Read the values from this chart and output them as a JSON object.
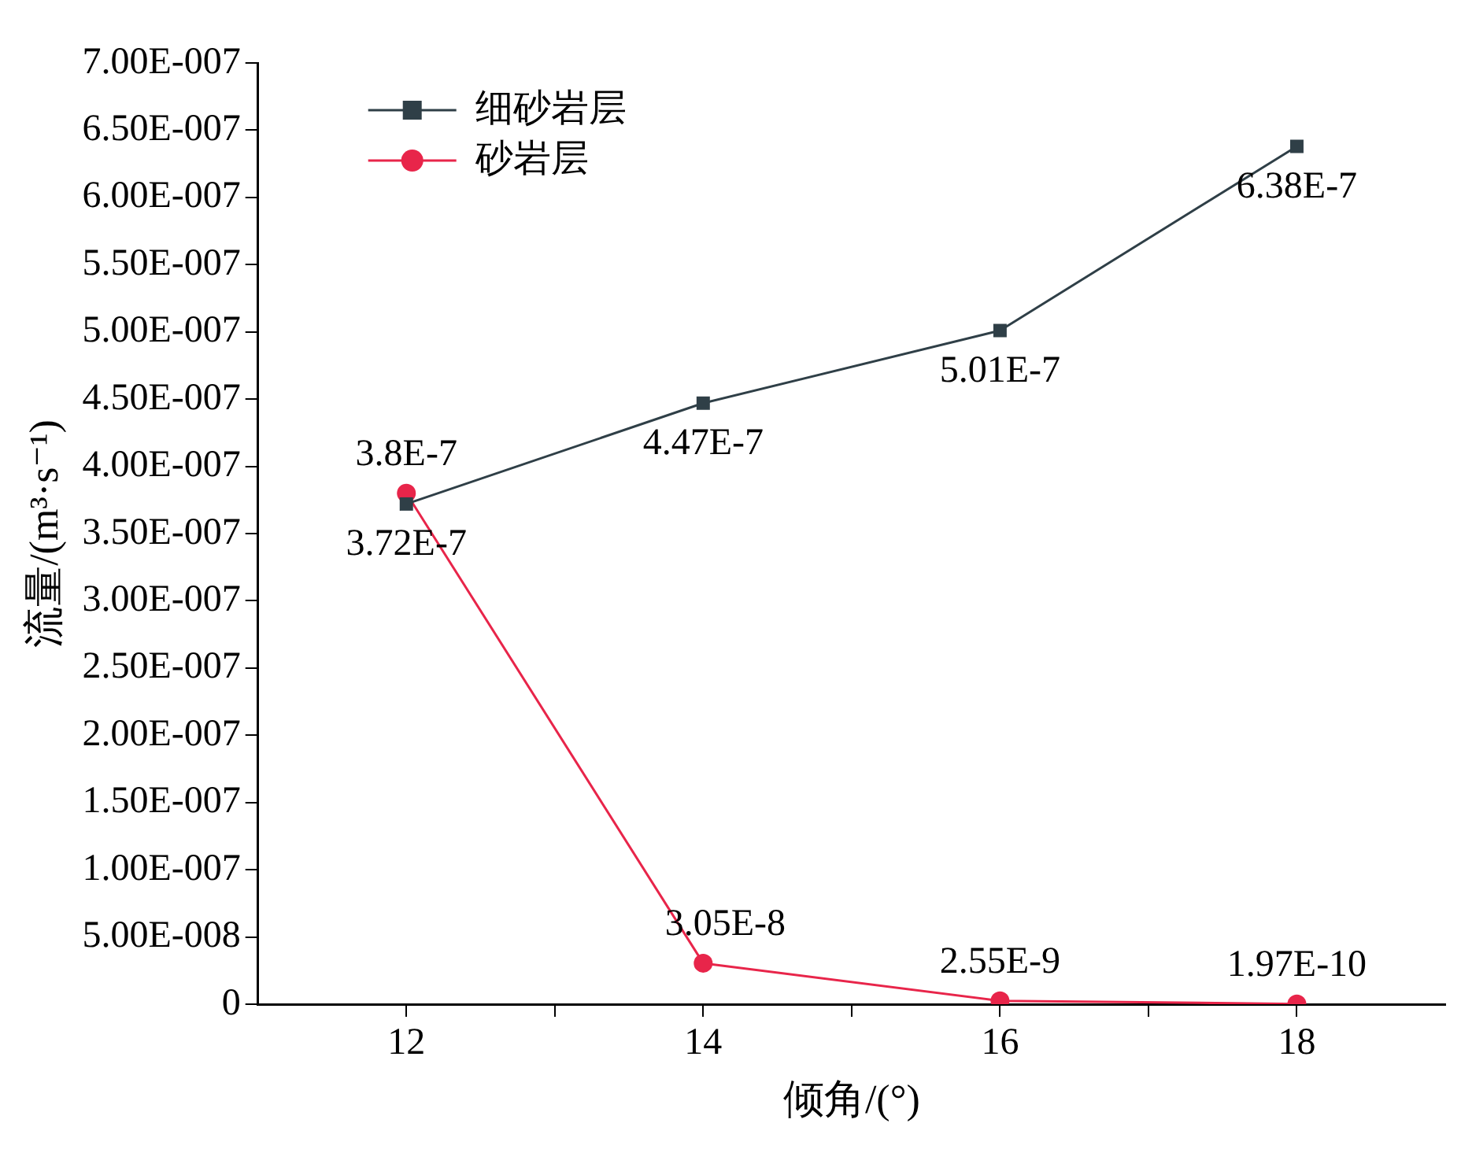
{
  "chart_data": {
    "type": "line",
    "xlabel": "倾角/(°)",
    "ylabel": "流量/(m³·s⁻¹)",
    "x": [
      12,
      14,
      16,
      18
    ],
    "xlim": [
      11,
      19
    ],
    "xticks": [
      12,
      {
        "value": 13,
        "label": null
      },
      14,
      {
        "value": 15,
        "label": null
      },
      16,
      {
        "value": 17,
        "label": null
      },
      18
    ],
    "ylim": [
      0,
      7e-07
    ],
    "yticks": [
      0,
      {
        "value": 5e-08,
        "label": "5.00E-008"
      },
      {
        "value": 1e-07,
        "label": "1.00E-007"
      },
      {
        "value": 1.5e-07,
        "label": "1.50E-007"
      },
      {
        "value": 2e-07,
        "label": "2.00E-007"
      },
      {
        "value": 2.5e-07,
        "label": "2.50E-007"
      },
      {
        "value": 3e-07,
        "label": "3.00E-007"
      },
      {
        "value": 3.5e-07,
        "label": "3.50E-007"
      },
      {
        "value": 4e-07,
        "label": "4.00E-007"
      },
      {
        "value": 4.5e-07,
        "label": "4.50E-007"
      },
      {
        "value": 5e-07,
        "label": "5.00E-007"
      },
      {
        "value": 5.5e-07,
        "label": "5.50E-007"
      },
      {
        "value": 6e-07,
        "label": "6.00E-007"
      },
      {
        "value": 6.5e-07,
        "label": "6.50E-007"
      },
      {
        "value": 7e-07,
        "label": "7.00E-007"
      }
    ],
    "grid": false,
    "legend": "top left",
    "series": [
      {
        "name": "细砂岩层",
        "color": "#2f3f47",
        "marker": "square",
        "values": [
          3.72e-07,
          4.47e-07,
          5.01e-07,
          6.38e-07
        ],
        "value_labels": [
          "3.72E-7",
          "4.47E-7",
          "5.01E-7",
          "6.38E-7"
        ]
      },
      {
        "name": "砂岩层",
        "color": "#e8254a",
        "marker": "circle",
        "values": [
          3.8e-07,
          3.05e-08,
          2.55e-09,
          1.97e-10
        ],
        "value_labels": [
          "3.8E-7",
          "3.05E-8",
          "2.55E-9",
          "1.97E-10"
        ]
      }
    ]
  }
}
